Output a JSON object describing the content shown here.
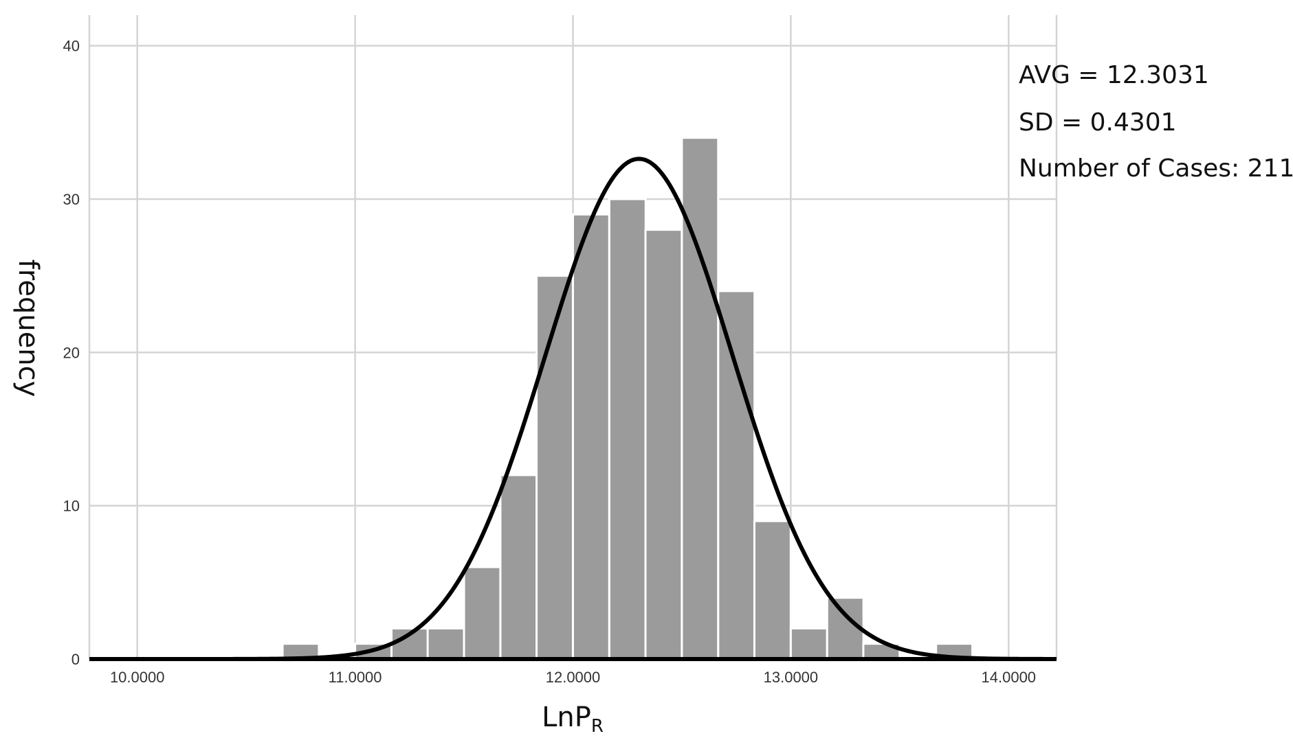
{
  "chart_data": {
    "type": "bar",
    "xlabel": "LnP",
    "xlabel_sub": "R",
    "ylabel": "frequency",
    "xlim": [
      9.78,
      14.22
    ],
    "ylim": [
      0,
      42
    ],
    "bin_width": 0.1667,
    "x_ticks": [
      "10.0000",
      "11.0000",
      "12.0000",
      "13.0000",
      "14.0000"
    ],
    "y_ticks": [
      "0",
      "10",
      "20",
      "30",
      "40"
    ],
    "grid": true,
    "bins": [
      {
        "x_start": 10.667,
        "value": 1
      },
      {
        "x_start": 11.0,
        "value": 1
      },
      {
        "x_start": 11.167,
        "value": 2
      },
      {
        "x_start": 11.333,
        "value": 2
      },
      {
        "x_start": 11.5,
        "value": 6
      },
      {
        "x_start": 11.667,
        "value": 12
      },
      {
        "x_start": 11.833,
        "value": 25
      },
      {
        "x_start": 12.0,
        "value": 29
      },
      {
        "x_start": 12.167,
        "value": 30
      },
      {
        "x_start": 12.333,
        "value": 28
      },
      {
        "x_start": 12.5,
        "value": 34
      },
      {
        "x_start": 12.667,
        "value": 24
      },
      {
        "x_start": 12.833,
        "value": 9
      },
      {
        "x_start": 13.0,
        "value": 2
      },
      {
        "x_start": 13.167,
        "value": 4
      },
      {
        "x_start": 13.333,
        "value": 1
      },
      {
        "x_start": 13.667,
        "value": 1
      }
    ],
    "normal_curve": {
      "mean": 12.3031,
      "sd": 0.4301,
      "n": 211
    },
    "annotations": [
      "AVG = 12.3031",
      "SD = 0.4301",
      "Number of Cases: 211"
    ]
  }
}
